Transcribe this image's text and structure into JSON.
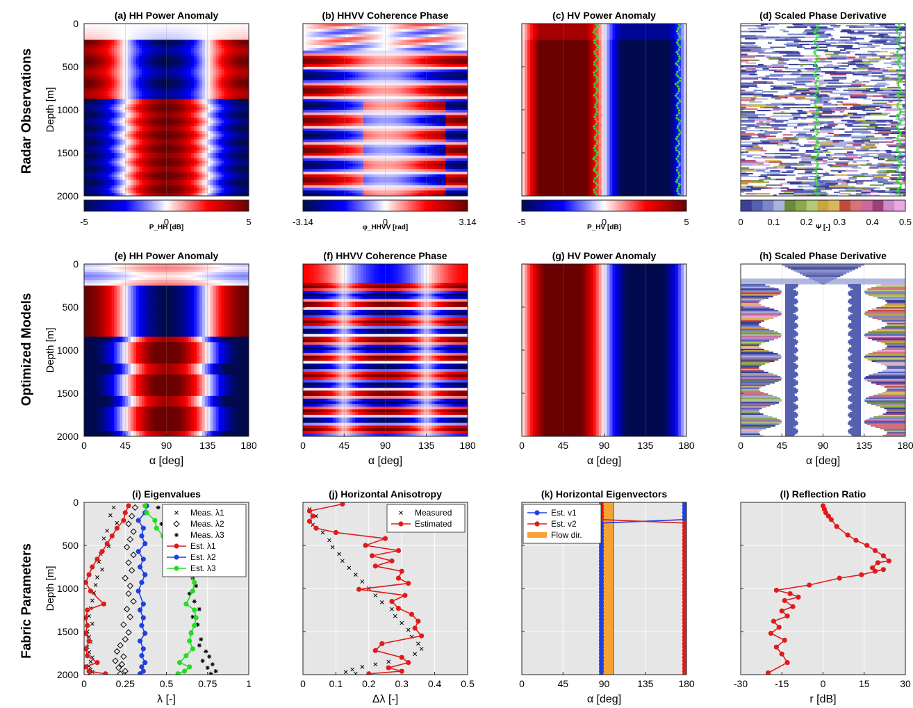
{
  "figure": {
    "row_labels": [
      "Radar Observations",
      "Optimized Models",
      "Fabric Parameters"
    ]
  },
  "heatmap_panels": [
    {
      "id": "a",
      "title": "(a) HH Power Anomaly",
      "kind": "hh",
      "colormap": "bwr",
      "colorbar": {
        "ticks": [
          "-5",
          "0",
          "5"
        ],
        "label": "P_HH [dB]"
      },
      "show_depth_ticks": true,
      "show_alpha_axis": false
    },
    {
      "id": "b",
      "title": "(b) HHVV Coherence Phase",
      "kind": "phase",
      "colormap": "bwr",
      "colorbar": {
        "ticks": [
          "-3.14",
          "0",
          "3.14"
        ],
        "label": "φ_HHVV [rad]"
      },
      "show_depth_ticks": false,
      "show_alpha_axis": false
    },
    {
      "id": "c",
      "title": "(c) HV Power Anomaly",
      "kind": "hv",
      "colormap": "bwr",
      "colorbar": {
        "ticks": [
          "-5",
          "0",
          "5"
        ],
        "label": "P_HV [dB]"
      },
      "show_depth_ticks": false,
      "show_alpha_axis": false
    },
    {
      "id": "d",
      "title": "(d) Scaled Phase Derivative",
      "kind": "psi",
      "colormap": "discrete",
      "colorbar": {
        "ticks": [
          "0",
          "0.1",
          "0.2",
          "0.3",
          "0.4",
          "0.5"
        ],
        "label": "Ψ [-]"
      },
      "show_depth_ticks": false,
      "show_alpha_axis": false
    },
    {
      "id": "e",
      "title": "(e) HH Power Anomaly",
      "kind": "hh_model",
      "colormap": "bwr",
      "show_depth_ticks": true,
      "show_alpha_axis": true
    },
    {
      "id": "f",
      "title": "(f) HHVV Coherence Phase",
      "kind": "phase_model",
      "colormap": "bwr",
      "show_depth_ticks": false,
      "show_alpha_axis": true
    },
    {
      "id": "g",
      "title": "(g) HV Power Anomaly",
      "kind": "hv_model",
      "colormap": "bwr",
      "show_depth_ticks": false,
      "show_alpha_axis": true
    },
    {
      "id": "h",
      "title": "(h) Scaled Phase Derivative",
      "kind": "psi_model",
      "colormap": "discrete",
      "show_depth_ticks": false,
      "show_alpha_axis": true
    }
  ],
  "axes": {
    "depth_label": "Depth [m]",
    "depth_ticks": [
      "0",
      "500",
      "1000",
      "1500",
      "2000"
    ],
    "alpha_label": "α [deg]",
    "alpha_ticks": [
      "0",
      "45",
      "90",
      "135",
      "180"
    ],
    "ylim": [
      0,
      2000
    ],
    "xlim": [
      0,
      180
    ]
  },
  "colormaps": {
    "bwr": [
      "#000a4d",
      "#0000ff",
      "#ffffff",
      "#ff0000",
      "#6b0000"
    ],
    "discrete": [
      "#3b3f9a",
      "#5560b0",
      "#7a86c8",
      "#a9b3e0",
      "#6b8a3a",
      "#8fa850",
      "#b3c978",
      "#c9a640",
      "#d9b85a",
      "#c24b3a",
      "#d9727a",
      "#c86a9a",
      "#a04078",
      "#d08acb",
      "#e9a9e0"
    ]
  },
  "chart_data": [
    {
      "id": "i",
      "type": "scatter",
      "title": "(i) Eigenvalues",
      "xlabel": "λ [-]",
      "ylabel": "Depth [m]",
      "xlim": [
        0,
        1
      ],
      "ylim": [
        2000,
        0
      ],
      "xticks": [
        "0",
        "0.25",
        "0.5",
        "0.75",
        "1"
      ],
      "legend_position": "top-right",
      "series": [
        {
          "name": "Meas. λ1",
          "marker": "x",
          "color": "#000000",
          "x": [
            0.18,
            0.16,
            0.2,
            0.14,
            0.12,
            0.15,
            0.1,
            0.09,
            0.11,
            0.08,
            0.07,
            0.06,
            0.05,
            0.04,
            0.03,
            0.05,
            0.02,
            0.03,
            0.04,
            0.02,
            0.03,
            0.05,
            0.04,
            0.03,
            0.04,
            0.05,
            0.03
          ],
          "y": [
            60,
            150,
            240,
            330,
            420,
            510,
            600,
            690,
            780,
            870,
            960,
            1050,
            1140,
            1230,
            1320,
            1410,
            1500,
            1560,
            1620,
            1680,
            1740,
            1800,
            1850,
            1900,
            1940,
            1970,
            1990
          ]
        },
        {
          "name": "Meas. λ2",
          "marker": "diamond",
          "color": "#000000",
          "x": [
            0.31,
            0.29,
            0.27,
            0.3,
            0.28,
            0.26,
            0.3,
            0.27,
            0.29,
            0.25,
            0.28,
            0.27,
            0.3,
            0.26,
            0.28,
            0.24,
            0.27,
            0.25,
            0.22,
            0.2,
            0.24,
            0.19,
            0.23,
            0.21,
            0.25,
            0.22
          ],
          "y": [
            60,
            160,
            250,
            340,
            430,
            520,
            610,
            700,
            790,
            880,
            970,
            1060,
            1150,
            1240,
            1330,
            1420,
            1510,
            1590,
            1660,
            1730,
            1790,
            1840,
            1880,
            1920,
            1960,
            1990
          ]
        },
        {
          "name": "Meas. λ3",
          "marker": "star",
          "color": "#000000",
          "x": [
            0.45,
            0.5,
            0.47,
            0.55,
            0.58,
            0.6,
            0.62,
            0.65,
            0.63,
            0.66,
            0.68,
            0.64,
            0.67,
            0.7,
            0.66,
            0.69,
            0.65,
            0.71,
            0.7,
            0.74,
            0.76,
            0.72,
            0.78,
            0.75,
            0.8,
            0.77
          ],
          "y": [
            60,
            160,
            250,
            340,
            430,
            520,
            610,
            700,
            790,
            880,
            970,
            1060,
            1150,
            1240,
            1330,
            1420,
            1510,
            1590,
            1660,
            1730,
            1790,
            1840,
            1880,
            1920,
            1960,
            1990
          ]
        },
        {
          "name": "Est. λ1",
          "marker": "dot-line",
          "color": "#e01b1b",
          "x": [
            0.27,
            0.25,
            0.24,
            0.2,
            0.17,
            0.14,
            0.11,
            0.08,
            0.05,
            0.03,
            0.01,
            0.04,
            0.12,
            0.02,
            0.01,
            0.02,
            0.01,
            0.03,
            0.01,
            0.02,
            0.08,
            0.01,
            0.03,
            0.13
          ],
          "y": [
            40,
            120,
            210,
            300,
            390,
            480,
            570,
            660,
            750,
            840,
            930,
            1030,
            1180,
            1250,
            1340,
            1430,
            1520,
            1610,
            1700,
            1780,
            1860,
            1910,
            1960,
            1990
          ]
        },
        {
          "name": "Est. λ2",
          "marker": "dot-line",
          "color": "#1f3fe0",
          "x": [
            0.38,
            0.37,
            0.33,
            0.36,
            0.35,
            0.37,
            0.33,
            0.36,
            0.34,
            0.37,
            0.35,
            0.33,
            0.36,
            0.34,
            0.36,
            0.35,
            0.37,
            0.34,
            0.36,
            0.35,
            0.37,
            0.35,
            0.36,
            0.34
          ],
          "y": [
            40,
            120,
            210,
            300,
            390,
            480,
            570,
            660,
            750,
            840,
            930,
            1030,
            1180,
            1250,
            1340,
            1430,
            1520,
            1610,
            1700,
            1780,
            1860,
            1910,
            1960,
            1990
          ]
        },
        {
          "name": "Est. λ3",
          "marker": "dot-line",
          "color": "#22dd22",
          "x": [
            0.37,
            0.38,
            0.43,
            0.44,
            0.48,
            0.52,
            0.57,
            0.6,
            0.63,
            0.65,
            0.67,
            0.66,
            0.62,
            0.67,
            0.68,
            0.67,
            0.65,
            0.64,
            0.66,
            0.62,
            0.58,
            0.64,
            0.61,
            0.57
          ],
          "y": [
            40,
            120,
            210,
            300,
            390,
            480,
            570,
            660,
            750,
            840,
            930,
            1030,
            1180,
            1250,
            1340,
            1430,
            1520,
            1610,
            1700,
            1780,
            1860,
            1910,
            1960,
            1990
          ]
        }
      ]
    },
    {
      "id": "j",
      "type": "scatter",
      "title": "(j) Horizontal Anisotropy",
      "xlabel": "Δλ [-]",
      "xlim": [
        0,
        0.5
      ],
      "ylim": [
        2000,
        0
      ],
      "xticks": [
        "0",
        "0.1",
        "0.2",
        "0.3",
        "0.4",
        "0.5"
      ],
      "legend_position": "top-right",
      "series": [
        {
          "name": "Measured",
          "marker": "x",
          "color": "#000000",
          "x": [
            0.02,
            0.04,
            0.03,
            0.06,
            0.08,
            0.09,
            0.11,
            0.12,
            0.14,
            0.16,
            0.18,
            0.2,
            0.22,
            0.24,
            0.27,
            0.28,
            0.3,
            0.32,
            0.33,
            0.35,
            0.36,
            0.34,
            0.3,
            0.26,
            0.22,
            0.18,
            0.15,
            0.13,
            0.16
          ],
          "y": [
            80,
            160,
            260,
            350,
            440,
            520,
            600,
            680,
            760,
            840,
            920,
            1000,
            1080,
            1160,
            1240,
            1320,
            1400,
            1480,
            1560,
            1640,
            1700,
            1760,
            1800,
            1850,
            1880,
            1910,
            1940,
            1970,
            1990
          ]
        },
        {
          "name": "Estimated",
          "marker": "dot-line",
          "color": "#e01b1b",
          "x": [
            0.12,
            0.02,
            0.03,
            0.02,
            0.04,
            0.1,
            0.25,
            0.19,
            0.29,
            0.21,
            0.27,
            0.22,
            0.3,
            0.29,
            0.32,
            0.17,
            0.31,
            0.27,
            0.29,
            0.33,
            0.35,
            0.34,
            0.36,
            0.24,
            0.22,
            0.3,
            0.32,
            0.26,
            0.3,
            0.2
          ],
          "y": [
            20,
            100,
            160,
            220,
            300,
            350,
            420,
            500,
            560,
            620,
            680,
            740,
            800,
            880,
            940,
            1010,
            1080,
            1150,
            1230,
            1300,
            1380,
            1460,
            1550,
            1640,
            1720,
            1800,
            1860,
            1920,
            1960,
            1990
          ]
        }
      ]
    },
    {
      "id": "k",
      "type": "line",
      "title": "(k) Horizontal Eigenvectors",
      "xlabel": "α [deg]",
      "xlim": [
        0,
        180
      ],
      "ylim": [
        2000,
        0
      ],
      "xticks": [
        "0",
        "45",
        "90",
        "135",
        "180"
      ],
      "legend_position": "top-left",
      "flow_band": {
        "name": "Flow dir.",
        "from": 85,
        "to": 100,
        "color": "#f7a233"
      },
      "series": [
        {
          "name": "Est. v1",
          "marker": "dot-line",
          "color": "#1f3fe0",
          "x_top": 178,
          "x_main": 87,
          "switch_depth": 230
        },
        {
          "name": "Est. v2",
          "marker": "dot-line",
          "color": "#e01b1b",
          "x_top": 87,
          "x_main": 178,
          "switch_depth": 230
        }
      ]
    },
    {
      "id": "l",
      "type": "line",
      "title": "(l) Reflection Ratio",
      "xlabel": "r [dB]",
      "xlim": [
        -30,
        30
      ],
      "ylim": [
        2000,
        0
      ],
      "xticks": [
        "-30",
        "-15",
        "0",
        "15",
        "30"
      ],
      "series": [
        {
          "name": "",
          "marker": "dot-line",
          "color": "#e01b1b",
          "x": [
            0,
            0.5,
            1,
            2,
            3,
            5,
            9,
            12,
            16,
            19,
            22,
            24,
            20,
            18,
            19,
            22,
            14,
            6,
            -5,
            -17,
            -12,
            -9,
            -14,
            -11,
            -15,
            -13,
            -18,
            -16,
            -19,
            -14,
            -17,
            -15,
            -13,
            -20
          ],
          "y": [
            40,
            80,
            120,
            160,
            200,
            280,
            380,
            440,
            500,
            560,
            620,
            680,
            700,
            760,
            800,
            780,
            840,
            880,
            960,
            1020,
            1060,
            1100,
            1140,
            1210,
            1260,
            1320,
            1380,
            1450,
            1520,
            1600,
            1680,
            1760,
            1860,
            1980
          ]
        }
      ]
    }
  ]
}
